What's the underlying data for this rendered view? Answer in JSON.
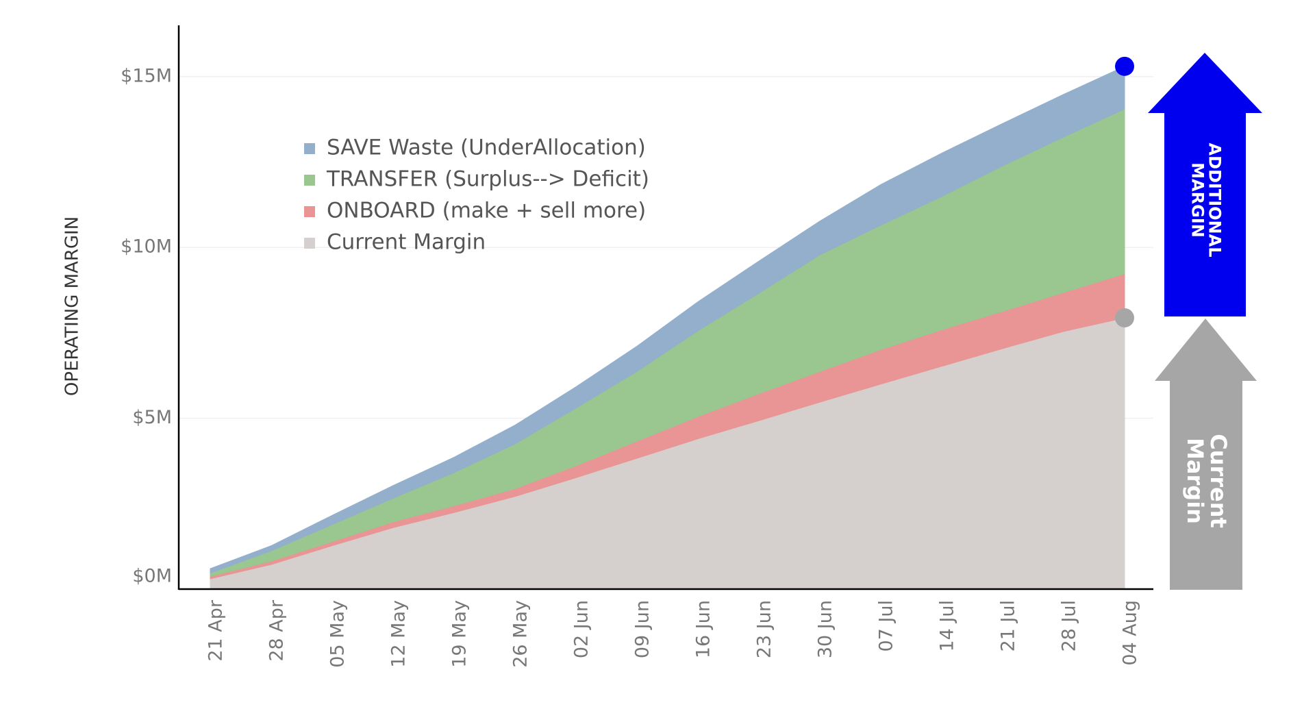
{
  "chart_data": {
    "type": "stacked_area",
    "y_label": "OPERATING MARGIN",
    "categories": [
      "21 Apr",
      "28 Apr",
      "05 May",
      "12 May",
      "19 May",
      "26 May",
      "02 Jun",
      "09 Jun",
      "16 Jun",
      "23 Jun",
      "30 Jun",
      "07 Jul",
      "14 Jul",
      "21 Jul",
      "28 Jul",
      "04 Aug"
    ],
    "series": [
      {
        "name": "Current Margin",
        "color": "#d5d0ce",
        "values": [
          0.3,
          0.72,
          1.27,
          1.8,
          2.24,
          2.71,
          3.26,
          3.83,
          4.4,
          4.93,
          5.47,
          6.0,
          6.52,
          7.04,
          7.54,
          7.94
        ]
      },
      {
        "name": "ONBOARD (make + sell more)",
        "color": "#e99595",
        "values": [
          0.07,
          0.1,
          0.12,
          0.17,
          0.2,
          0.23,
          0.35,
          0.5,
          0.65,
          0.79,
          0.9,
          1.01,
          1.07,
          1.09,
          1.14,
          1.29
        ]
      },
      {
        "name": "TRANSFER (Surplus--> Deficit)",
        "color": "#9ac68f",
        "values": [
          0.1,
          0.3,
          0.5,
          0.69,
          0.97,
          1.31,
          1.69,
          2.04,
          2.51,
          2.94,
          3.41,
          3.64,
          3.9,
          4.26,
          4.55,
          4.82
        ]
      },
      {
        "name": "SAVE Waste (UnderAllocation)",
        "color": "#93afcb",
        "values": [
          0.13,
          0.15,
          0.27,
          0.37,
          0.45,
          0.55,
          0.62,
          0.74,
          0.85,
          0.94,
          0.99,
          1.19,
          1.27,
          1.24,
          1.25,
          1.25
        ]
      }
    ],
    "ylim": [
      0,
      16.5
    ],
    "yticks": [
      {
        "value": 0,
        "label": "$0M"
      },
      {
        "value": 5,
        "label": "$5M"
      },
      {
        "value": 10,
        "label": "$10M"
      },
      {
        "value": 15,
        "label": "$15M"
      }
    ],
    "grid": true,
    "legend": "upper left",
    "annotations": [
      {
        "lines": [
          "ADDITIONAL",
          "MARGIN"
        ],
        "color": "#0000ee"
      },
      {
        "lines": [
          "Current",
          "Margin"
        ],
        "color": "#a6a6a6"
      }
    ]
  }
}
